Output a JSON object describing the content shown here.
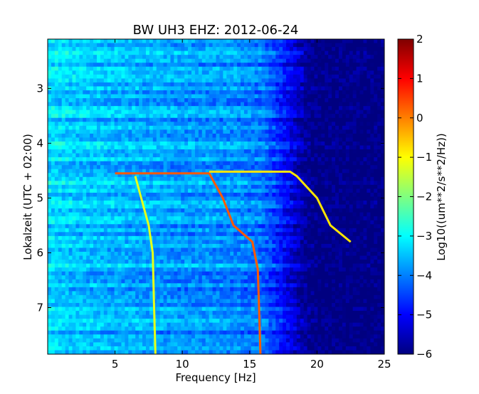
{
  "chart_data": {
    "type": "heatmap",
    "title": "BW UH3 EHZ: 2012-06-24",
    "xlabel": "Frequency [Hz]",
    "ylabel": "Lokalzeit (UTC + 02:00)",
    "xlim": [
      0,
      25
    ],
    "ylim": [
      7.85,
      2.1
    ],
    "y_inverted": true,
    "x_ticks": [
      5,
      10,
      15,
      20,
      25
    ],
    "y_ticks": [
      3,
      4,
      5,
      6,
      7
    ],
    "colorscale": "jet",
    "colorbar": {
      "label": "Log10((um**2/s**2/Hz))",
      "range": [
        -6,
        2
      ],
      "ticks": [
        2,
        1,
        0,
        -1,
        -2,
        -3,
        -4,
        -5,
        -6
      ]
    },
    "background_level_by_frequency": {
      "x": [
        0,
        2,
        4,
        6,
        8,
        10,
        12,
        14,
        16,
        17,
        18,
        19,
        20,
        22,
        25
      ],
      "value": [
        -3.2,
        -3.4,
        -3.5,
        -3.6,
        -3.7,
        -3.8,
        -3.8,
        -3.9,
        -4.1,
        -4.6,
        -5.2,
        -5.7,
        -6,
        -6,
        -6
      ]
    },
    "features": [
      {
        "name": "",
        "level": -1.2,
        "x": [
          6.5,
          7.5,
          7.8,
          7.9,
          8.0
        ],
        "y": [
          4.6,
          5.5,
          6.0,
          7.0,
          7.85
        ]
      },
      {
        "name": "",
        "level": 0.3,
        "x": [
          5.0,
          12.0,
          13.0,
          13.8,
          15.2,
          15.6,
          15.7,
          15.8
        ],
        "y": [
          4.55,
          4.55,
          5.0,
          5.5,
          5.8,
          6.3,
          7.0,
          7.85
        ]
      },
      {
        "name": "",
        "level": -0.8,
        "x": [
          12.0,
          18.0,
          18.5,
          20.0,
          21.0,
          22.5
        ],
        "y": [
          4.52,
          4.52,
          4.6,
          5.0,
          5.5,
          5.8
        ]
      }
    ]
  }
}
